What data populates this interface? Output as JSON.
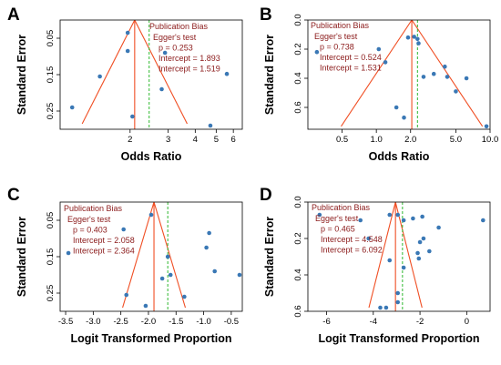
{
  "colors": {
    "funnel": "#f04e23",
    "pooled_line": "#f04e23",
    "adjusted_line": "#2eb82e",
    "point": "#3a78b5",
    "annotation": "#8b1a1a"
  },
  "chart_data": [
    {
      "type": "scatter",
      "panel": "A",
      "xlabel": "Odds Ratio",
      "ylabel": "Standard Error",
      "x_scale": "log",
      "xlim": [
        0.95,
        6.6
      ],
      "ylim": [
        0.0,
        0.3
      ],
      "y_reversed": true,
      "x_ticks": [
        "2",
        "3",
        "4",
        "5",
        "6"
      ],
      "x_tick_values": [
        2,
        3,
        4,
        5,
        6
      ],
      "y_ticks": [
        "0.05",
        "0.15",
        "0.25"
      ],
      "y_tick_values": [
        0.05,
        0.15,
        0.25
      ],
      "pooled": 2.1,
      "adjusted": 2.45,
      "funnel_base_se": 0.285,
      "points": [
        {
          "x": 1.95,
          "y": 0.035
        },
        {
          "x": 1.95,
          "y": 0.085
        },
        {
          "x": 2.9,
          "y": 0.09
        },
        {
          "x": 1.45,
          "y": 0.155
        },
        {
          "x": 2.8,
          "y": 0.19
        },
        {
          "x": 1.08,
          "y": 0.24
        },
        {
          "x": 2.05,
          "y": 0.265
        },
        {
          "x": 5.6,
          "y": 0.148
        },
        {
          "x": 4.7,
          "y": 0.29
        }
      ],
      "annotation": {
        "title": "Publication Bias",
        "lines": [
          "Egger's test",
          "p = 0.253",
          "Intercept = 1.893",
          "Intercept = 1.519"
        ]
      }
    },
    {
      "type": "scatter",
      "panel": "B",
      "xlabel": "Odds Ratio",
      "ylabel": "Standard Error",
      "x_scale": "log",
      "xlim": [
        0.25,
        10.0
      ],
      "ylim": [
        0.0,
        0.75
      ],
      "y_reversed": true,
      "x_ticks": [
        "0.5",
        "1.0",
        "2.0",
        "5.0",
        "10.0"
      ],
      "x_tick_values": [
        0.5,
        1.0,
        2.0,
        5.0,
        10.0
      ],
      "y_ticks": [
        "0.0",
        "0.2",
        "0.4",
        "0.6"
      ],
      "y_tick_values": [
        0.0,
        0.2,
        0.4,
        0.6
      ],
      "pooled": 2.05,
      "adjusted": 2.3,
      "funnel_base_se": 0.73,
      "points": [
        {
          "x": 0.3,
          "y": 0.22
        },
        {
          "x": 1.05,
          "y": 0.2
        },
        {
          "x": 1.2,
          "y": 0.29
        },
        {
          "x": 1.9,
          "y": 0.12
        },
        {
          "x": 2.15,
          "y": 0.115
        },
        {
          "x": 2.3,
          "y": 0.13
        },
        {
          "x": 2.35,
          "y": 0.16
        },
        {
          "x": 2.6,
          "y": 0.39
        },
        {
          "x": 3.2,
          "y": 0.37
        },
        {
          "x": 4.0,
          "y": 0.32
        },
        {
          "x": 4.2,
          "y": 0.39
        },
        {
          "x": 6.2,
          "y": 0.4
        },
        {
          "x": 5.0,
          "y": 0.49
        },
        {
          "x": 1.5,
          "y": 0.6
        },
        {
          "x": 1.75,
          "y": 0.67
        },
        {
          "x": 9.3,
          "y": 0.73
        }
      ],
      "annotation": {
        "title": "Publication Bias",
        "lines": [
          "Egger's test",
          "p = 0.738",
          "Intercept = 0.524",
          "Intercept = 1.531"
        ]
      }
    },
    {
      "type": "scatter",
      "panel": "C",
      "xlabel": "Logit Transformed Proportion",
      "ylabel": "Standard Error",
      "x_scale": "linear",
      "xlim": [
        -3.6,
        -0.3
      ],
      "ylim": [
        0.0,
        0.3
      ],
      "y_reversed": true,
      "x_ticks": [
        "-3.5",
        "-3.0",
        "-2.5",
        "-2.0",
        "-1.5",
        "-1.0",
        "-0.5"
      ],
      "x_tick_values": [
        -3.5,
        -3.0,
        -2.5,
        -2.0,
        -1.5,
        -1.0,
        -0.5
      ],
      "y_ticks": [
        "0.05",
        "0.15",
        "0.25"
      ],
      "y_tick_values": [
        0.05,
        0.15,
        0.25
      ],
      "pooled": -1.9,
      "adjusted": -1.65,
      "funnel_base_se": 0.29,
      "points": [
        {
          "x": -1.95,
          "y": 0.035
        },
        {
          "x": -0.9,
          "y": 0.085
        },
        {
          "x": -0.95,
          "y": 0.125
        },
        {
          "x": -3.45,
          "y": 0.14
        },
        {
          "x": -1.65,
          "y": 0.15
        },
        {
          "x": -1.6,
          "y": 0.2
        },
        {
          "x": -0.8,
          "y": 0.19
        },
        {
          "x": -0.35,
          "y": 0.2
        },
        {
          "x": -1.75,
          "y": 0.21
        },
        {
          "x": -2.4,
          "y": 0.255
        },
        {
          "x": -1.35,
          "y": 0.26
        },
        {
          "x": -2.05,
          "y": 0.285
        },
        {
          "x": -2.45,
          "y": 0.075
        }
      ],
      "annotation": {
        "title": "Publication Bias",
        "lines": [
          "Egger's test",
          "p = 0.403",
          "Intercept = 2.058",
          "Intercept = 2.364"
        ]
      }
    },
    {
      "type": "scatter",
      "panel": "D",
      "xlabel": "Logit Transformed Proportion",
      "ylabel": "Standard Error",
      "x_scale": "linear",
      "xlim": [
        -6.8,
        1.0
      ],
      "ylim": [
        0.0,
        0.6
      ],
      "y_reversed": true,
      "x_ticks": [
        "-6",
        "-4",
        "-2",
        "0"
      ],
      "x_tick_values": [
        -6,
        -4,
        -2,
        0
      ],
      "y_ticks": [
        "0.0",
        "0.2",
        "0.4",
        "0.6"
      ],
      "y_tick_values": [
        0.0,
        0.2,
        0.4,
        0.6
      ],
      "pooled": -3.05,
      "adjusted": -2.75,
      "funnel_base_se": 0.58,
      "points": [
        {
          "x": -6.3,
          "y": 0.07
        },
        {
          "x": -3.3,
          "y": 0.07
        },
        {
          "x": -2.95,
          "y": 0.07
        },
        {
          "x": -2.7,
          "y": 0.1
        },
        {
          "x": -2.3,
          "y": 0.09
        },
        {
          "x": -1.9,
          "y": 0.08
        },
        {
          "x": -1.2,
          "y": 0.14
        },
        {
          "x": 0.7,
          "y": 0.1
        },
        {
          "x": -4.55,
          "y": 0.1
        },
        {
          "x": -4.2,
          "y": 0.2
        },
        {
          "x": -2.0,
          "y": 0.22
        },
        {
          "x": -1.85,
          "y": 0.2
        },
        {
          "x": -2.1,
          "y": 0.28
        },
        {
          "x": -1.6,
          "y": 0.27
        },
        {
          "x": -2.05,
          "y": 0.31
        },
        {
          "x": -3.3,
          "y": 0.32
        },
        {
          "x": -2.7,
          "y": 0.36
        },
        {
          "x": -2.95,
          "y": 0.5
        },
        {
          "x": -3.7,
          "y": 0.58
        },
        {
          "x": -3.45,
          "y": 0.58
        },
        {
          "x": -2.95,
          "y": 0.55
        }
      ],
      "annotation": {
        "title": "Publication Bias",
        "lines": [
          "Egger's test",
          "p = 0.465",
          "Intercept = 4.548",
          "Intercept = 6.092"
        ]
      }
    }
  ]
}
